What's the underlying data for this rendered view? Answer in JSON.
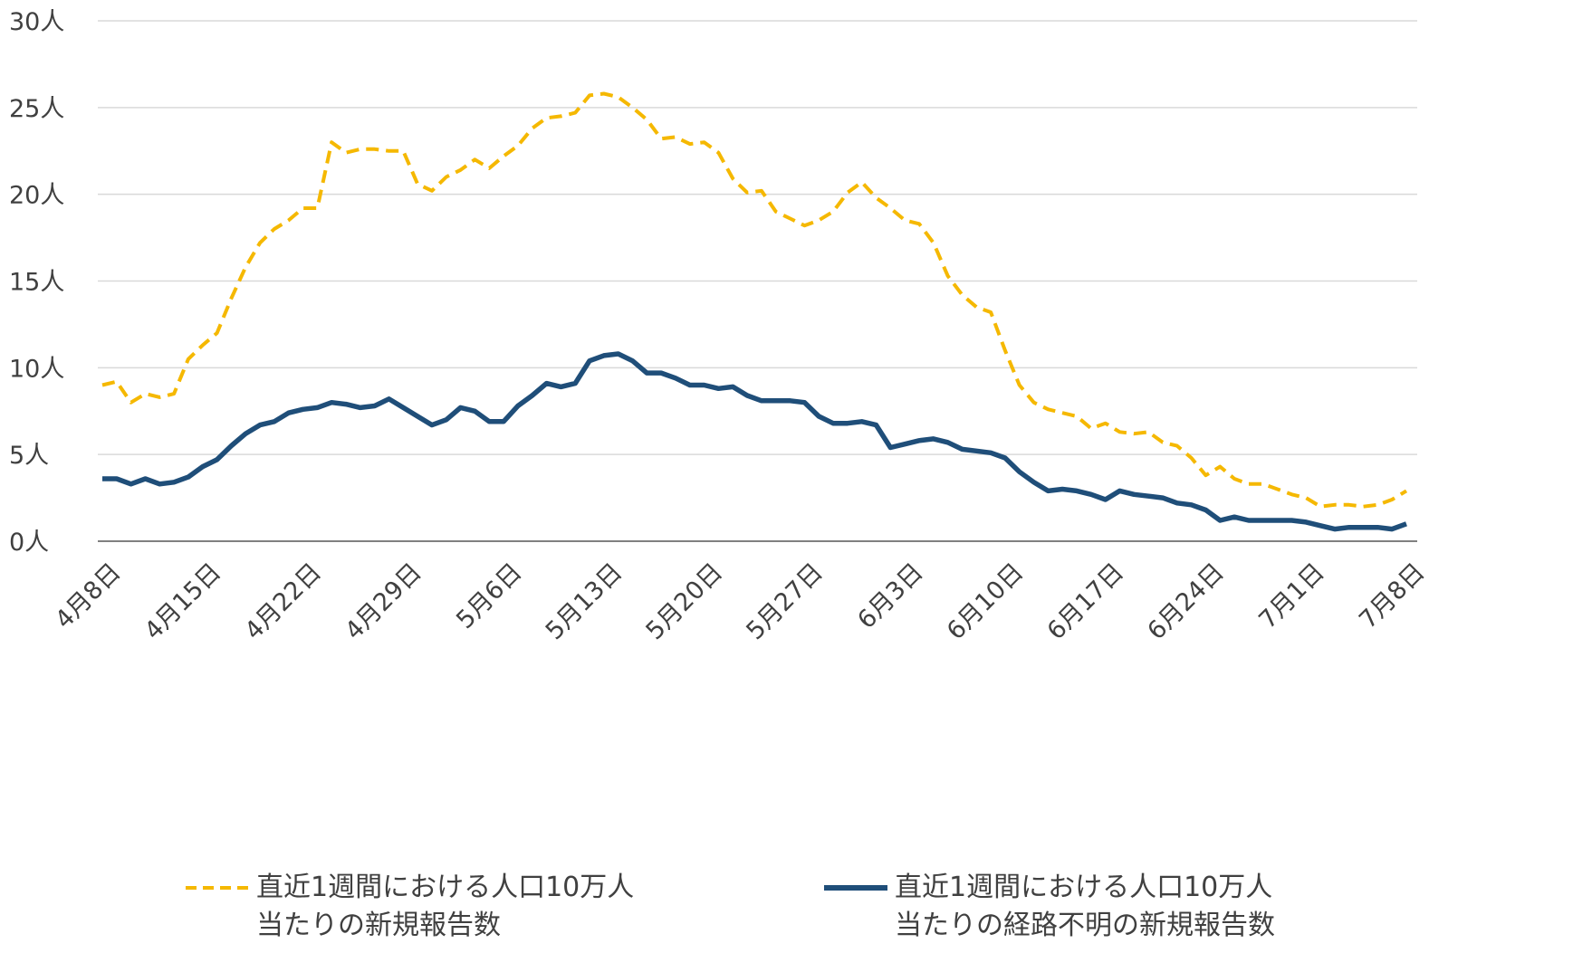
{
  "chart_data": {
    "type": "line",
    "categories": [
      "4月8日",
      null,
      null,
      null,
      null,
      null,
      null,
      "4月15日",
      null,
      null,
      null,
      null,
      null,
      null,
      "4月22日",
      null,
      null,
      null,
      null,
      null,
      null,
      "4月29日",
      null,
      null,
      null,
      null,
      null,
      null,
      "5月6日",
      null,
      null,
      null,
      null,
      null,
      null,
      "5月13日",
      null,
      null,
      null,
      null,
      null,
      null,
      "5月20日",
      null,
      null,
      null,
      null,
      null,
      null,
      "5月27日",
      null,
      null,
      null,
      null,
      null,
      null,
      "6月3日",
      null,
      null,
      null,
      null,
      null,
      null,
      "6月10日",
      null,
      null,
      null,
      null,
      null,
      null,
      "6月17日",
      null,
      null,
      null,
      null,
      null,
      null,
      "6月24日",
      null,
      null,
      null,
      null,
      null,
      null,
      "7月1日",
      null,
      null,
      null,
      null,
      null,
      null,
      "7月8日"
    ],
    "series": [
      {
        "name": "直近1週間における人口10万人\n当たりの新規報告数",
        "color": "#f5b800",
        "dashed": true,
        "values": [
          9.0,
          9.2,
          8.0,
          8.5,
          8.3,
          8.5,
          10.5,
          11.3,
          12.0,
          14.0,
          15.8,
          17.2,
          18.0,
          18.5,
          19.2,
          19.2,
          23.0,
          22.4,
          22.6,
          22.6,
          22.5,
          22.5,
          20.6,
          20.2,
          21.0,
          21.4,
          22.0,
          21.5,
          22.2,
          22.8,
          23.8,
          24.4,
          24.5,
          24.7,
          25.7,
          25.8,
          25.6,
          25.0,
          24.3,
          23.2,
          23.3,
          22.9,
          23.0,
          22.4,
          20.9,
          20.1,
          20.2,
          19.0,
          18.6,
          18.2,
          18.5,
          19.0,
          20.1,
          20.7,
          19.8,
          19.2,
          18.5,
          18.3,
          17.2,
          15.3,
          14.2,
          13.5,
          13.2,
          11.0,
          9.0,
          8.0,
          7.6,
          7.4,
          7.2,
          6.5,
          6.8,
          6.3,
          6.2,
          6.3,
          5.7,
          5.5,
          4.8,
          3.8,
          4.3,
          3.6,
          3.3,
          3.3,
          3.0,
          2.7,
          2.5,
          2.0,
          2.1,
          2.1,
          2.0,
          2.1,
          2.4,
          2.9
        ]
      },
      {
        "name": "直近1週間における人口10万人\n当たりの経路不明の新規報告数",
        "color": "#1f4e79",
        "dashed": false,
        "values": [
          3.6,
          3.6,
          3.3,
          3.6,
          3.3,
          3.4,
          3.7,
          4.3,
          4.7,
          5.5,
          6.2,
          6.7,
          6.9,
          7.4,
          7.6,
          7.7,
          8.0,
          7.9,
          7.7,
          7.8,
          8.2,
          7.7,
          7.2,
          6.7,
          7.0,
          7.7,
          7.5,
          6.9,
          6.9,
          7.8,
          8.4,
          9.1,
          8.9,
          9.1,
          10.4,
          10.7,
          10.8,
          10.4,
          9.7,
          9.7,
          9.4,
          9.0,
          9.0,
          8.8,
          8.9,
          8.4,
          8.1,
          8.1,
          8.1,
          8.0,
          7.2,
          6.8,
          6.8,
          6.9,
          6.7,
          5.4,
          5.6,
          5.8,
          5.9,
          5.7,
          5.3,
          5.2,
          5.1,
          4.8,
          4.0,
          3.4,
          2.9,
          3.0,
          2.9,
          2.7,
          2.4,
          2.9,
          2.7,
          2.6,
          2.5,
          2.2,
          2.1,
          1.8,
          1.2,
          1.4,
          1.2,
          1.2,
          1.2,
          1.2,
          1.1,
          0.9,
          0.7,
          0.8,
          0.8,
          0.8,
          0.7,
          1.0
        ]
      }
    ],
    "ylim": [
      0,
      30
    ],
    "yticks": [
      {
        "value": 0,
        "label": "0人"
      },
      {
        "value": 5,
        "label": "5人"
      },
      {
        "value": 10,
        "label": "10人"
      },
      {
        "value": 15,
        "label": "15人"
      },
      {
        "value": 20,
        "label": "20人"
      },
      {
        "value": 25,
        "label": "25人"
      },
      {
        "value": 30,
        "label": "30人"
      }
    ],
    "grid": true,
    "legend": "bottom"
  }
}
